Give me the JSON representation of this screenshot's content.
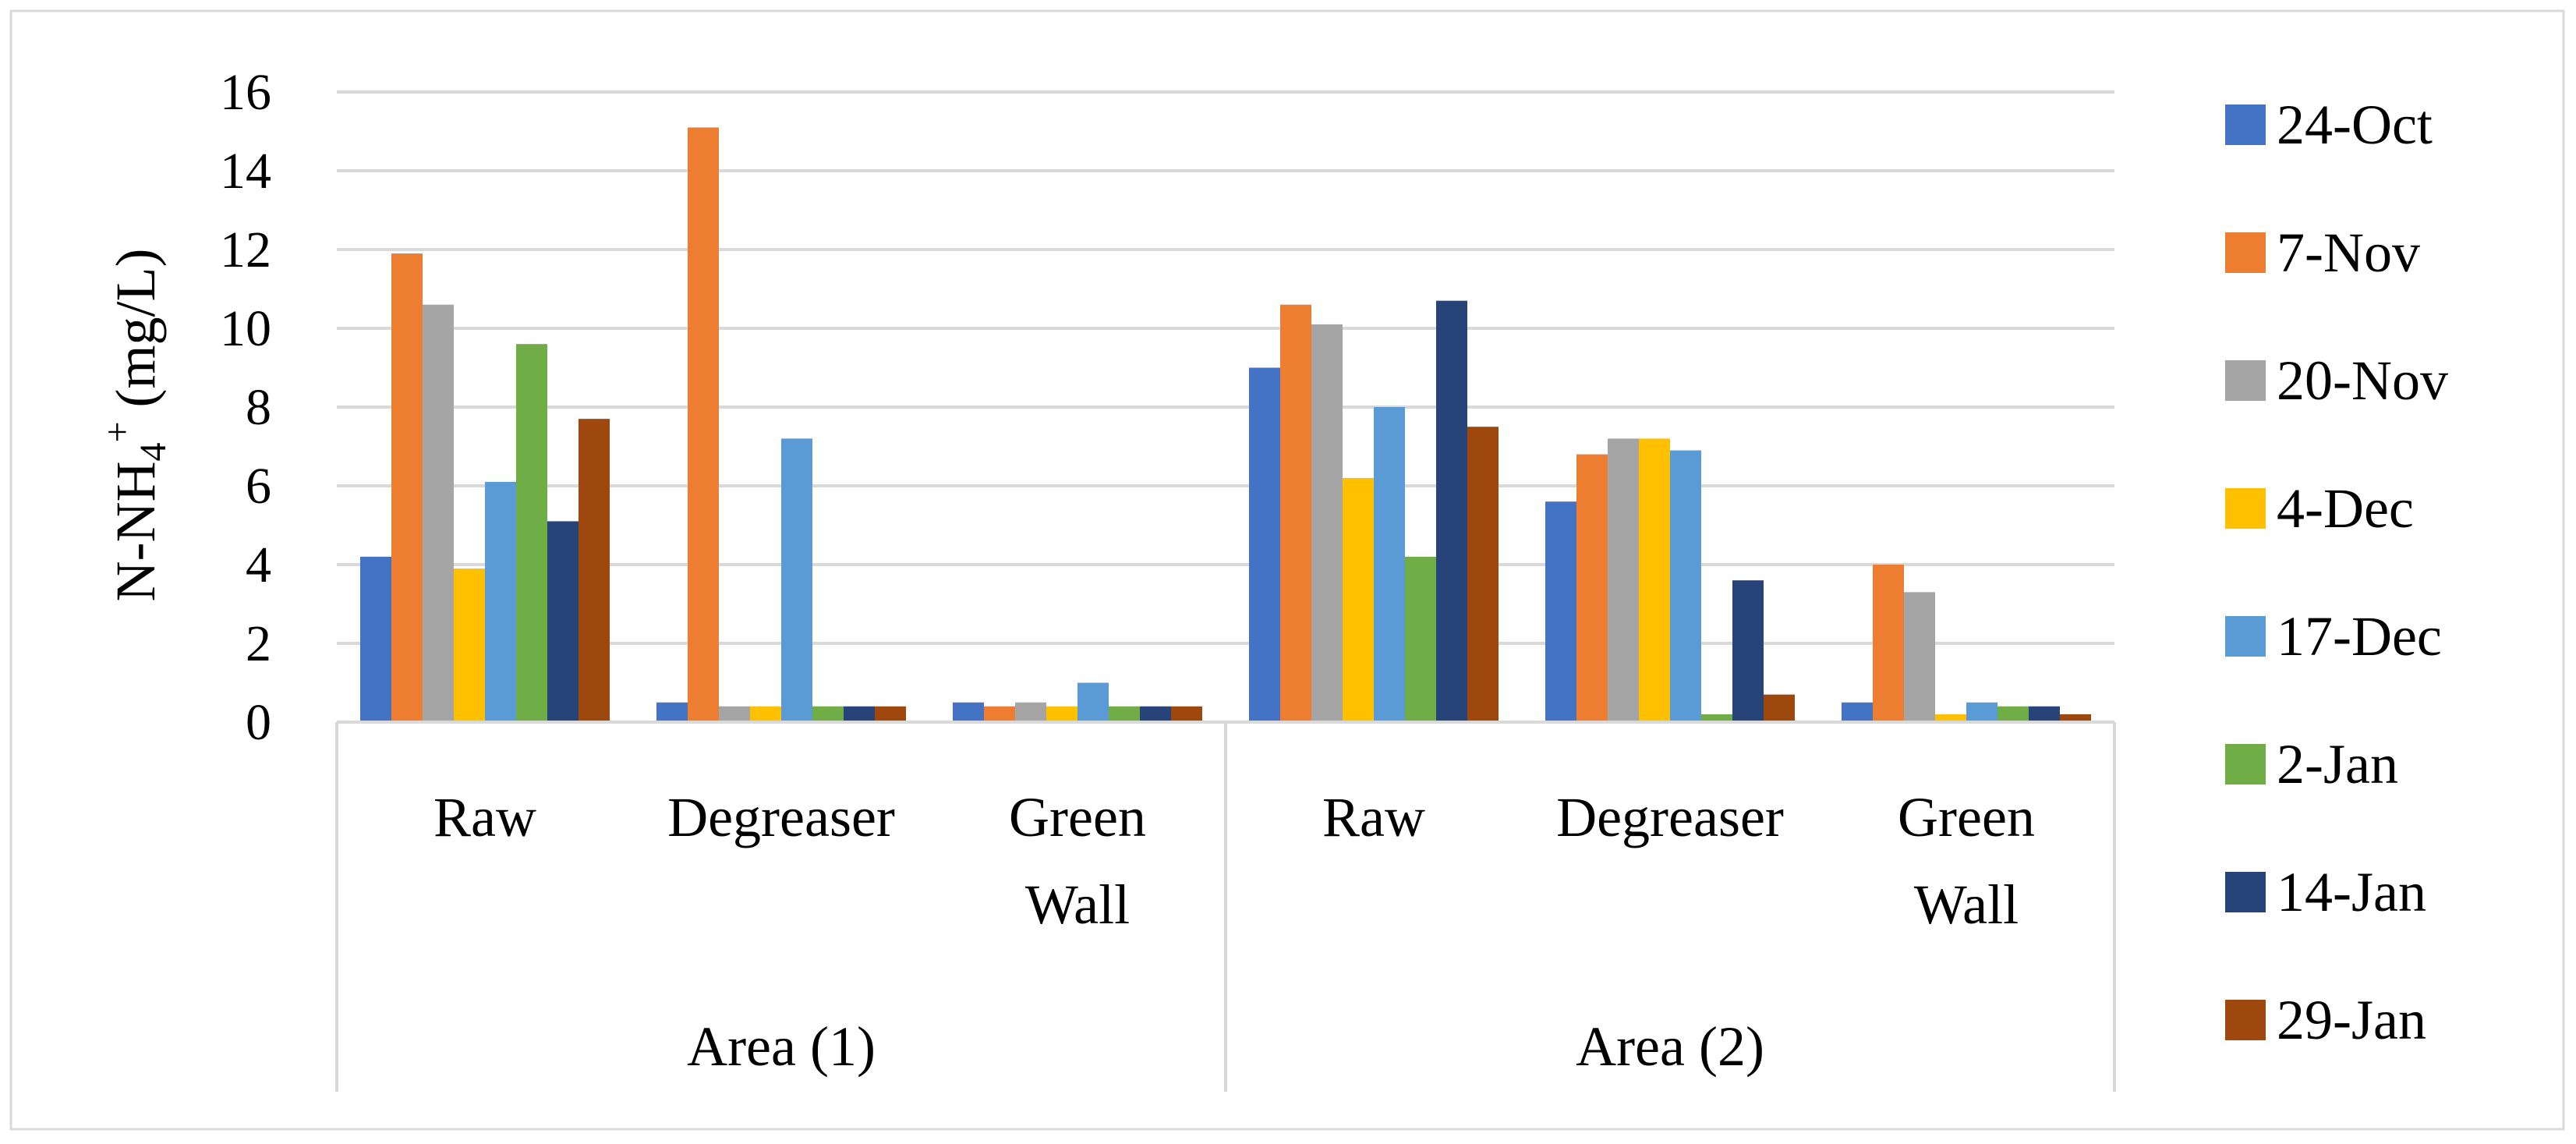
{
  "chart_data": {
    "type": "bar",
    "ylabel": {
      "main": "N-NH",
      "sub": "4",
      "sup": "+",
      "unit": " (mg/L)"
    },
    "ylim": [
      0,
      16
    ],
    "yticks": [
      "0",
      "2",
      "4",
      "6",
      "8",
      "10",
      "12",
      "14",
      "16"
    ],
    "grid": true,
    "legend_position": "right",
    "groups": [
      {
        "name": "Area (1)",
        "categories": [
          {
            "lines": [
              "Raw"
            ]
          },
          {
            "lines": [
              "Degreaser"
            ]
          },
          {
            "lines": [
              "Green",
              "Wall"
            ]
          }
        ]
      },
      {
        "name": "Area (2)",
        "categories": [
          {
            "lines": [
              "Raw"
            ]
          },
          {
            "lines": [
              "Degreaser"
            ]
          },
          {
            "lines": [
              "Green",
              "Wall"
            ]
          }
        ]
      }
    ],
    "series": [
      {
        "name": "24-Oct",
        "color": "#4472C4",
        "values": [
          4.2,
          0.5,
          0.5,
          9.0,
          5.6,
          0.5
        ]
      },
      {
        "name": "7-Nov",
        "color": "#ED7D31",
        "values": [
          11.9,
          15.1,
          0.4,
          10.6,
          6.8,
          4.0
        ]
      },
      {
        "name": "20-Nov",
        "color": "#A5A5A5",
        "values": [
          10.6,
          0.4,
          0.5,
          10.1,
          7.2,
          3.3
        ]
      },
      {
        "name": "4-Dec",
        "color": "#FFC000",
        "values": [
          3.9,
          0.4,
          0.4,
          6.2,
          7.2,
          0.2
        ]
      },
      {
        "name": "17-Dec",
        "color": "#5B9BD5",
        "values": [
          6.1,
          7.2,
          1.0,
          8.0,
          6.9,
          0.5
        ]
      },
      {
        "name": "2-Jan",
        "color": "#70AD47",
        "values": [
          9.6,
          0.4,
          0.4,
          4.2,
          0.2,
          0.4
        ]
      },
      {
        "name": "14-Jan",
        "color": "#264478",
        "values": [
          5.1,
          0.4,
          0.4,
          10.7,
          3.6,
          0.4
        ]
      },
      {
        "name": "29-Jan",
        "color": "#9E480E",
        "values": [
          7.7,
          0.4,
          0.4,
          7.5,
          0.7,
          0.2
        ]
      }
    ]
  }
}
